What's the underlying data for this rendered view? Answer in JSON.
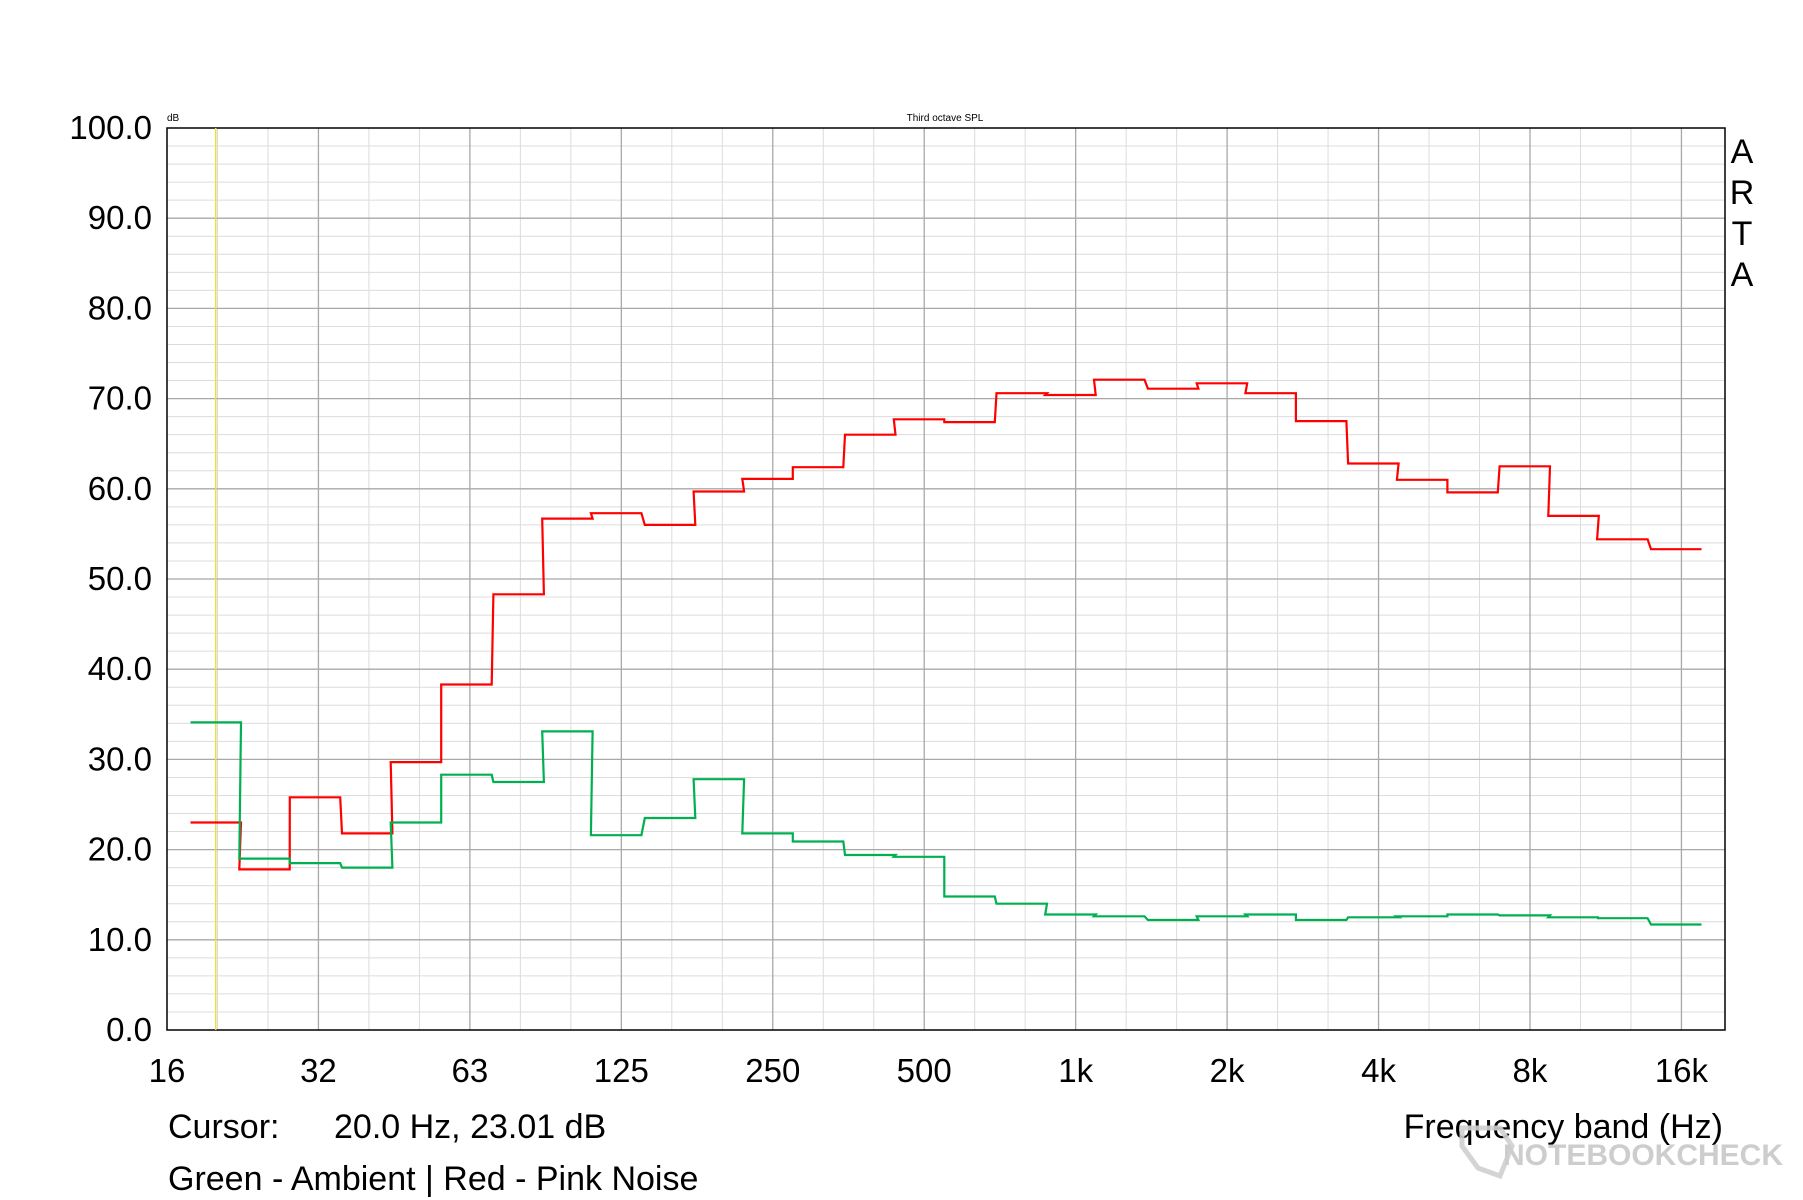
{
  "chart_data": {
    "type": "line",
    "title": "Third octave SPL",
    "ylabel": "dB",
    "xlabel": "Frequency band (Hz)",
    "x_scale": "log",
    "xlim": [
      16,
      20000
    ],
    "ylim": [
      0,
      100
    ],
    "grid": true,
    "x_tick_labels": [
      "16",
      "32",
      "63",
      "125",
      "250",
      "500",
      "1k",
      "2k",
      "4k",
      "8k",
      "16k"
    ],
    "y_tick_labels": [
      "0.0",
      "10.0",
      "20.0",
      "30.0",
      "40.0",
      "50.0",
      "60.0",
      "70.0",
      "80.0",
      "90.0",
      "100.0"
    ],
    "bands": [
      20,
      25,
      31.5,
      40,
      50,
      63,
      80,
      100,
      125,
      160,
      200,
      250,
      315,
      400,
      500,
      630,
      800,
      1000,
      1250,
      1600,
      2000,
      2500,
      3150,
      4000,
      5000,
      6300,
      8000,
      10000,
      12500,
      16000
    ],
    "series": [
      {
        "color": "#ff0000",
        "values": [
          23.0,
          17.8,
          25.8,
          21.8,
          29.7,
          38.3,
          48.3,
          56.7,
          57.3,
          56.0,
          59.7,
          61.1,
          62.4,
          66.0,
          67.7,
          67.4,
          70.6,
          70.4,
          72.1,
          71.1,
          71.7,
          70.6,
          67.5,
          62.8,
          61.0,
          59.6,
          62.5,
          57.0,
          54.4,
          53.3
        ]
      },
      {
        "color": "#00b050",
        "values": [
          34.1,
          19.0,
          18.5,
          18.0,
          23.0,
          28.3,
          27.5,
          33.1,
          21.6,
          23.5,
          27.8,
          21.8,
          20.9,
          19.4,
          19.2,
          14.8,
          14.0,
          12.8,
          12.6,
          12.2,
          12.6,
          12.8,
          12.2,
          12.5,
          12.6,
          12.8,
          12.7,
          12.5,
          12.4,
          11.7
        ]
      }
    ],
    "cursor_line": {
      "x": 20.0,
      "color": "#e8e040"
    },
    "side_label": [
      "A",
      "R",
      "T",
      "A"
    ]
  },
  "footer": {
    "cursor_label": "Cursor:",
    "cursor_value": "20.0 Hz, 23.01 dB",
    "legend": "Green - Ambient | Red - Pink Noise"
  },
  "watermark": "NOTEBOOKCHECK"
}
